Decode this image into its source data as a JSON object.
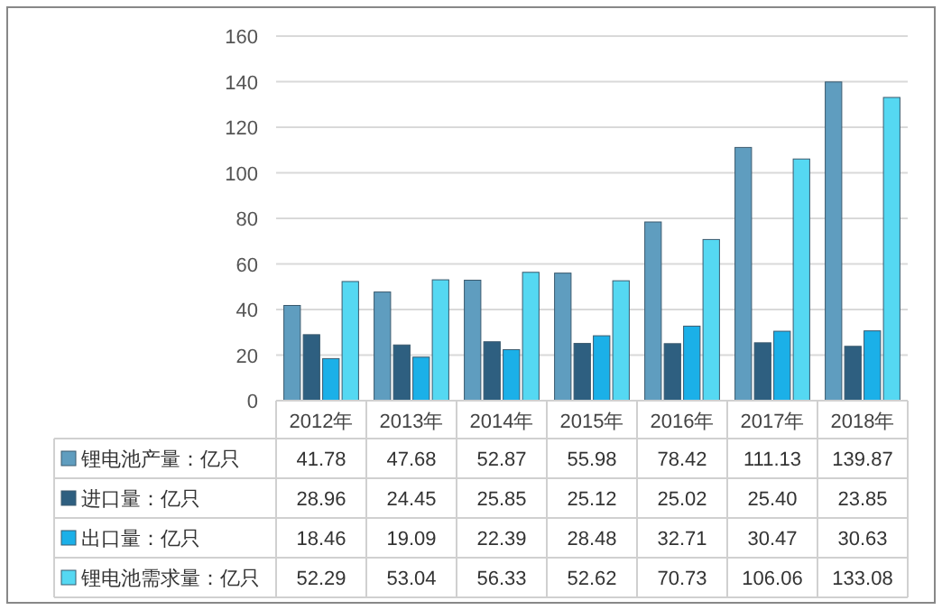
{
  "chart_data": {
    "type": "bar",
    "categories": [
      "2012年",
      "2013年",
      "2014年",
      "2015年",
      "2016年",
      "2017年",
      "2018年"
    ],
    "series": [
      {
        "name": "锂电池产量：亿只",
        "color": "#5f9dbf",
        "values": [
          41.78,
          47.68,
          52.87,
          55.98,
          78.42,
          111.13,
          139.87
        ],
        "value_labels": [
          "41.78",
          "47.68",
          "52.87",
          "55.98",
          "78.42",
          "111.13",
          "139.87"
        ]
      },
      {
        "name": "进口量：亿只",
        "color": "#2e5f80",
        "values": [
          28.96,
          24.45,
          25.85,
          25.12,
          25.02,
          25.4,
          23.85
        ],
        "value_labels": [
          "28.96",
          "24.45",
          "25.85",
          "25.12",
          "25.02",
          "25.40",
          "23.85"
        ]
      },
      {
        "name": "出口量：亿只",
        "color": "#1bb0e8",
        "values": [
          18.46,
          19.09,
          22.39,
          28.48,
          32.71,
          30.47,
          30.63
        ],
        "value_labels": [
          "18.46",
          "19.09",
          "22.39",
          "28.48",
          "32.71",
          "30.47",
          "30.63"
        ]
      },
      {
        "name": "锂电池需求量：亿只",
        "color": "#55d8f2",
        "values": [
          52.29,
          53.04,
          56.33,
          52.62,
          70.73,
          106.06,
          133.08
        ],
        "value_labels": [
          "52.29",
          "53.04",
          "56.33",
          "52.62",
          "70.73",
          "106.06",
          "133.08"
        ]
      }
    ],
    "ylim": [
      0,
      160
    ],
    "yticks": [
      0,
      20,
      40,
      60,
      80,
      100,
      120,
      140,
      160
    ],
    "grid": "y",
    "legend": "bottom"
  }
}
